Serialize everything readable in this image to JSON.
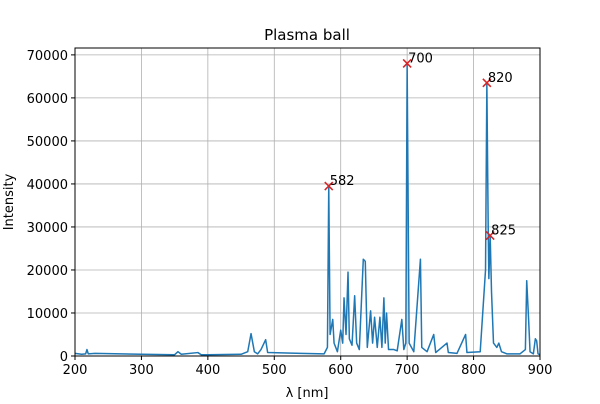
{
  "chart_data": {
    "type": "line",
    "title": "Plasma ball",
    "x_label": "λ [nm]",
    "y_label": "Intensity",
    "x": [
      200,
      210,
      216,
      218,
      220,
      230,
      300,
      350,
      355,
      360,
      385,
      390,
      400,
      450,
      460,
      465,
      470,
      475,
      480,
      487,
      490,
      540,
      575,
      580,
      582,
      584,
      588,
      590,
      595,
      600,
      603,
      605,
      608,
      611,
      613,
      617,
      621,
      624,
      628,
      634,
      637,
      640,
      645,
      648,
      651,
      655,
      659,
      662,
      665,
      667,
      669,
      672,
      680,
      685,
      692,
      695,
      698,
      700,
      703,
      710,
      720,
      722,
      730,
      740,
      743,
      760,
      762,
      775,
      788,
      790,
      810,
      818,
      820,
      822,
      823,
      825,
      827,
      830,
      835,
      838,
      842,
      850,
      870,
      878,
      880,
      883,
      885,
      890,
      893,
      895,
      897,
      900
    ],
    "series": [
      {
        "name": "spectrum",
        "color": "#1f77b4",
        "values": [
          600,
          400,
          500,
          1500,
          500,
          600,
          400,
          300,
          1000,
          400,
          800,
          300,
          300,
          400,
          1000,
          5200,
          1000,
          500,
          1500,
          3800,
          800,
          600,
          500,
          2000,
          39500,
          5000,
          8500,
          3000,
          1000,
          6000,
          3000,
          13500,
          5000,
          19500,
          4000,
          2500,
          14000,
          3000,
          1500,
          22500,
          22000,
          2000,
          10500,
          3000,
          9000,
          2000,
          9000,
          2000,
          13500,
          3000,
          10000,
          1500,
          1500,
          1200,
          8500,
          1500,
          3000,
          68000,
          3000,
          1000,
          22500,
          2000,
          1000,
          5000,
          800,
          3000,
          800,
          600,
          5000,
          800,
          1000,
          20000,
          63500,
          30000,
          18000,
          28000,
          15000,
          3000,
          2000,
          3000,
          1000,
          500,
          500,
          1500,
          17500,
          8000,
          1000,
          500,
          4000,
          3500,
          500,
          300
        ]
      }
    ],
    "peaks": {
      "color": "#d62728",
      "x": [
        582,
        700,
        820,
        825
      ],
      "values": [
        39500,
        68000,
        63500,
        28000
      ],
      "labels": [
        "582",
        "700",
        "820",
        "825"
      ]
    },
    "xlim": [
      200,
      900
    ],
    "ylim": [
      0,
      71600
    ],
    "xticks": [
      200,
      300,
      400,
      500,
      600,
      700,
      800,
      900
    ],
    "yticks": [
      0,
      10000,
      20000,
      30000,
      40000,
      50000,
      60000,
      70000
    ],
    "grid": true
  }
}
